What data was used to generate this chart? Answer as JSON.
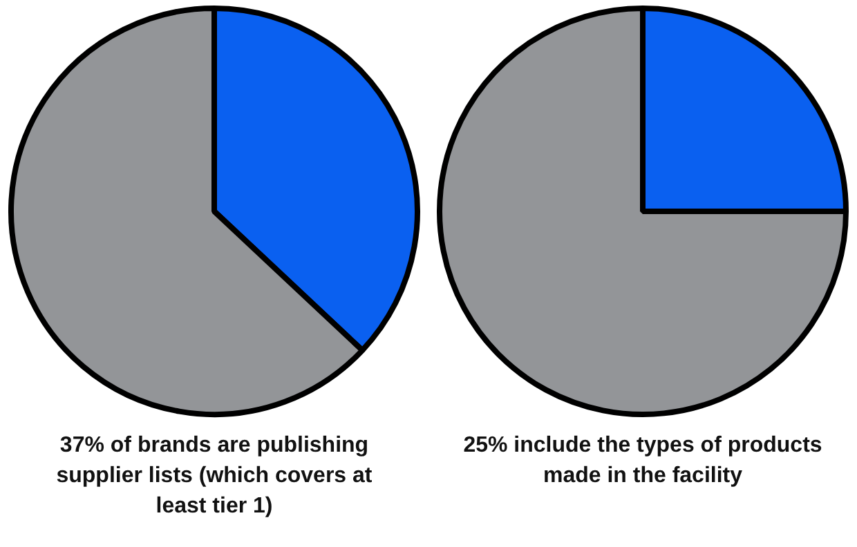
{
  "chart_data": [
    {
      "type": "pie",
      "title": "37% of brands are publishing supplier lists (which covers at least tier 1)",
      "categories": [
        null,
        null
      ],
      "values": [
        37,
        63
      ],
      "colors": [
        "#0a60f0",
        "#939598"
      ]
    },
    {
      "type": "pie",
      "title": "25% include the types of products made in the facility",
      "categories": [
        null,
        null
      ],
      "values": [
        25,
        75
      ],
      "colors": [
        "#0a60f0",
        "#939598"
      ]
    }
  ]
}
